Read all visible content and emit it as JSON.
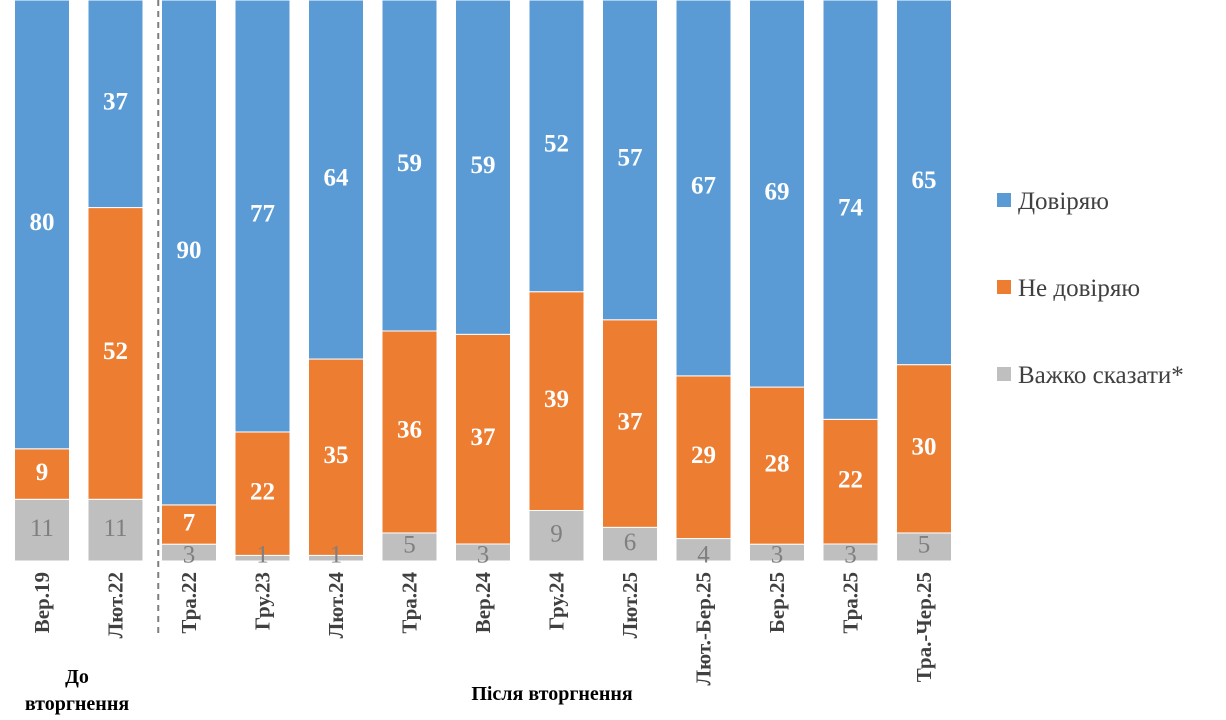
{
  "chart_data": {
    "type": "bar",
    "stacked": true,
    "percent_scale": true,
    "categories": [
      "Вер.19",
      "Лют.22",
      "Тра.22",
      "Гру.23",
      "Лют.24",
      "Тра.24",
      "Вер.24",
      "Гру.24",
      "Лют.25",
      "Лют.-Бер.25",
      "Бер.25",
      "Тра.25",
      "Тра.-Чер.25"
    ],
    "series": [
      {
        "name": "Важко сказати*",
        "color": "#bfbfbf",
        "values": [
          11,
          11,
          3,
          1,
          1,
          5,
          3,
          9,
          6,
          4,
          3,
          3,
          5
        ]
      },
      {
        "name": "Не довіряю",
        "color": "#ed7d31",
        "values": [
          9,
          52,
          7,
          22,
          35,
          36,
          37,
          39,
          37,
          29,
          28,
          22,
          30
        ]
      },
      {
        "name": "Довіряю",
        "color": "#5b9bd5",
        "values": [
          80,
          37,
          90,
          77,
          64,
          59,
          59,
          52,
          57,
          67,
          69,
          74,
          65
        ]
      }
    ],
    "groups": [
      {
        "label": "До вторгнення",
        "categories": [
          "Вер.19",
          "Лют.22"
        ]
      },
      {
        "label": "Після вторгнення",
        "categories": [
          "Тра.22",
          "Гру.23",
          "Лют.24",
          "Тра.24",
          "Вер.24",
          "Гру.24",
          "Лют.25",
          "Лют.-Бер.25",
          "Бер.25",
          "Тра.25",
          "Тра.-Чер.25"
        ]
      }
    ],
    "legend": {
      "position": "right",
      "items": [
        "Довіряю",
        "Не довіряю",
        "Важко сказати*"
      ]
    },
    "divider_after_category": "Лют.22",
    "grid": false
  }
}
